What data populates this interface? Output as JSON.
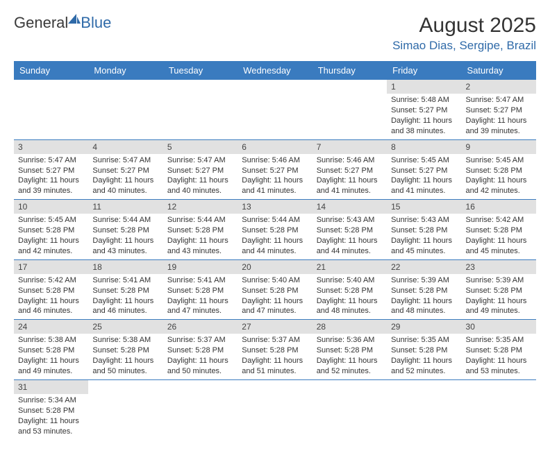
{
  "logo": {
    "part1": "General",
    "part2": "Blue"
  },
  "title": "August 2025",
  "location": "Simao Dias, Sergipe, Brazil",
  "weekdays": [
    "Sunday",
    "Monday",
    "Tuesday",
    "Wednesday",
    "Thursday",
    "Friday",
    "Saturday"
  ],
  "header_bg": "#3a7bbf",
  "header_fg": "#ffffff",
  "daynum_bg": "#e1e1e1",
  "row_border": "#3a7bbf",
  "text_color": "#333333",
  "logo_blue": "#2f6aa8",
  "weeks": [
    [
      null,
      null,
      null,
      null,
      null,
      {
        "n": "1",
        "sr": "Sunrise: 5:48 AM",
        "ss": "Sunset: 5:27 PM",
        "d1": "Daylight: 11 hours",
        "d2": "and 38 minutes."
      },
      {
        "n": "2",
        "sr": "Sunrise: 5:47 AM",
        "ss": "Sunset: 5:27 PM",
        "d1": "Daylight: 11 hours",
        "d2": "and 39 minutes."
      }
    ],
    [
      {
        "n": "3",
        "sr": "Sunrise: 5:47 AM",
        "ss": "Sunset: 5:27 PM",
        "d1": "Daylight: 11 hours",
        "d2": "and 39 minutes."
      },
      {
        "n": "4",
        "sr": "Sunrise: 5:47 AM",
        "ss": "Sunset: 5:27 PM",
        "d1": "Daylight: 11 hours",
        "d2": "and 40 minutes."
      },
      {
        "n": "5",
        "sr": "Sunrise: 5:47 AM",
        "ss": "Sunset: 5:27 PM",
        "d1": "Daylight: 11 hours",
        "d2": "and 40 minutes."
      },
      {
        "n": "6",
        "sr": "Sunrise: 5:46 AM",
        "ss": "Sunset: 5:27 PM",
        "d1": "Daylight: 11 hours",
        "d2": "and 41 minutes."
      },
      {
        "n": "7",
        "sr": "Sunrise: 5:46 AM",
        "ss": "Sunset: 5:27 PM",
        "d1": "Daylight: 11 hours",
        "d2": "and 41 minutes."
      },
      {
        "n": "8",
        "sr": "Sunrise: 5:45 AM",
        "ss": "Sunset: 5:27 PM",
        "d1": "Daylight: 11 hours",
        "d2": "and 41 minutes."
      },
      {
        "n": "9",
        "sr": "Sunrise: 5:45 AM",
        "ss": "Sunset: 5:28 PM",
        "d1": "Daylight: 11 hours",
        "d2": "and 42 minutes."
      }
    ],
    [
      {
        "n": "10",
        "sr": "Sunrise: 5:45 AM",
        "ss": "Sunset: 5:28 PM",
        "d1": "Daylight: 11 hours",
        "d2": "and 42 minutes."
      },
      {
        "n": "11",
        "sr": "Sunrise: 5:44 AM",
        "ss": "Sunset: 5:28 PM",
        "d1": "Daylight: 11 hours",
        "d2": "and 43 minutes."
      },
      {
        "n": "12",
        "sr": "Sunrise: 5:44 AM",
        "ss": "Sunset: 5:28 PM",
        "d1": "Daylight: 11 hours",
        "d2": "and 43 minutes."
      },
      {
        "n": "13",
        "sr": "Sunrise: 5:44 AM",
        "ss": "Sunset: 5:28 PM",
        "d1": "Daylight: 11 hours",
        "d2": "and 44 minutes."
      },
      {
        "n": "14",
        "sr": "Sunrise: 5:43 AM",
        "ss": "Sunset: 5:28 PM",
        "d1": "Daylight: 11 hours",
        "d2": "and 44 minutes."
      },
      {
        "n": "15",
        "sr": "Sunrise: 5:43 AM",
        "ss": "Sunset: 5:28 PM",
        "d1": "Daylight: 11 hours",
        "d2": "and 45 minutes."
      },
      {
        "n": "16",
        "sr": "Sunrise: 5:42 AM",
        "ss": "Sunset: 5:28 PM",
        "d1": "Daylight: 11 hours",
        "d2": "and 45 minutes."
      }
    ],
    [
      {
        "n": "17",
        "sr": "Sunrise: 5:42 AM",
        "ss": "Sunset: 5:28 PM",
        "d1": "Daylight: 11 hours",
        "d2": "and 46 minutes."
      },
      {
        "n": "18",
        "sr": "Sunrise: 5:41 AM",
        "ss": "Sunset: 5:28 PM",
        "d1": "Daylight: 11 hours",
        "d2": "and 46 minutes."
      },
      {
        "n": "19",
        "sr": "Sunrise: 5:41 AM",
        "ss": "Sunset: 5:28 PM",
        "d1": "Daylight: 11 hours",
        "d2": "and 47 minutes."
      },
      {
        "n": "20",
        "sr": "Sunrise: 5:40 AM",
        "ss": "Sunset: 5:28 PM",
        "d1": "Daylight: 11 hours",
        "d2": "and 47 minutes."
      },
      {
        "n": "21",
        "sr": "Sunrise: 5:40 AM",
        "ss": "Sunset: 5:28 PM",
        "d1": "Daylight: 11 hours",
        "d2": "and 48 minutes."
      },
      {
        "n": "22",
        "sr": "Sunrise: 5:39 AM",
        "ss": "Sunset: 5:28 PM",
        "d1": "Daylight: 11 hours",
        "d2": "and 48 minutes."
      },
      {
        "n": "23",
        "sr": "Sunrise: 5:39 AM",
        "ss": "Sunset: 5:28 PM",
        "d1": "Daylight: 11 hours",
        "d2": "and 49 minutes."
      }
    ],
    [
      {
        "n": "24",
        "sr": "Sunrise: 5:38 AM",
        "ss": "Sunset: 5:28 PM",
        "d1": "Daylight: 11 hours",
        "d2": "and 49 minutes."
      },
      {
        "n": "25",
        "sr": "Sunrise: 5:38 AM",
        "ss": "Sunset: 5:28 PM",
        "d1": "Daylight: 11 hours",
        "d2": "and 50 minutes."
      },
      {
        "n": "26",
        "sr": "Sunrise: 5:37 AM",
        "ss": "Sunset: 5:28 PM",
        "d1": "Daylight: 11 hours",
        "d2": "and 50 minutes."
      },
      {
        "n": "27",
        "sr": "Sunrise: 5:37 AM",
        "ss": "Sunset: 5:28 PM",
        "d1": "Daylight: 11 hours",
        "d2": "and 51 minutes."
      },
      {
        "n": "28",
        "sr": "Sunrise: 5:36 AM",
        "ss": "Sunset: 5:28 PM",
        "d1": "Daylight: 11 hours",
        "d2": "and 52 minutes."
      },
      {
        "n": "29",
        "sr": "Sunrise: 5:35 AM",
        "ss": "Sunset: 5:28 PM",
        "d1": "Daylight: 11 hours",
        "d2": "and 52 minutes."
      },
      {
        "n": "30",
        "sr": "Sunrise: 5:35 AM",
        "ss": "Sunset: 5:28 PM",
        "d1": "Daylight: 11 hours",
        "d2": "and 53 minutes."
      }
    ],
    [
      {
        "n": "31",
        "sr": "Sunrise: 5:34 AM",
        "ss": "Sunset: 5:28 PM",
        "d1": "Daylight: 11 hours",
        "d2": "and 53 minutes."
      },
      null,
      null,
      null,
      null,
      null,
      null
    ]
  ]
}
